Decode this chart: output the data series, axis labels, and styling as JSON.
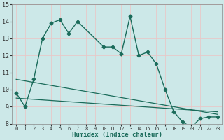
{
  "xlabel": "Humidex (Indice chaleur)",
  "bg_color": "#cce8e8",
  "grid_color": "#e8c8c8",
  "line_color": "#1a6b5a",
  "xlim": [
    -0.5,
    23.5
  ],
  "ylim": [
    8,
    15
  ],
  "yticks": [
    8,
    9,
    10,
    11,
    12,
    13,
    14,
    15
  ],
  "xticks": [
    0,
    1,
    2,
    3,
    4,
    5,
    6,
    7,
    8,
    9,
    10,
    11,
    12,
    13,
    14,
    15,
    16,
    17,
    18,
    19,
    20,
    21,
    22,
    23
  ],
  "main_x": [
    0,
    1,
    2,
    3,
    4,
    5,
    6,
    7,
    10,
    11,
    12,
    13,
    14,
    15,
    16,
    17,
    18,
    19,
    20,
    21,
    22,
    23
  ],
  "main_y": [
    9.8,
    9.0,
    10.6,
    13.0,
    13.9,
    14.1,
    13.3,
    14.0,
    12.5,
    12.5,
    12.1,
    14.3,
    12.0,
    12.2,
    11.5,
    10.0,
    8.7,
    8.1,
    7.8,
    8.3,
    8.4,
    8.4
  ],
  "line1_x": [
    0,
    23
  ],
  "line1_y": [
    10.6,
    8.55
  ],
  "line2_x": [
    0,
    23
  ],
  "line2_y": [
    9.5,
    8.7
  ]
}
